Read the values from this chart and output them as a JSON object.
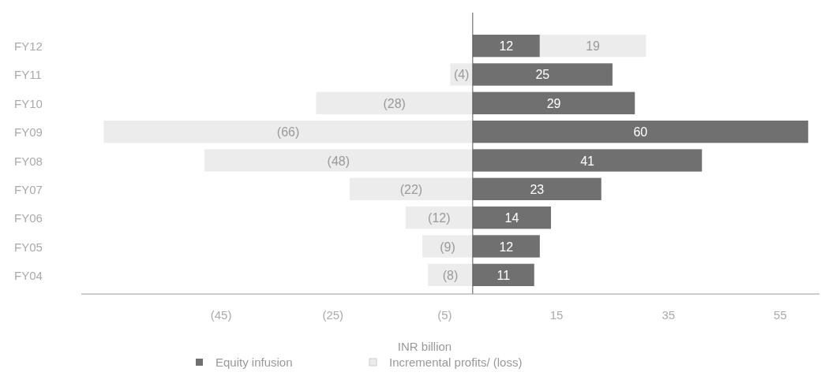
{
  "chart_data": {
    "type": "bar",
    "orientation": "horizontal",
    "stacked": true,
    "categories": [
      "FY12",
      "FY11",
      "FY10",
      "FY09",
      "FY08",
      "FY07",
      "FY06",
      "FY05",
      "FY04"
    ],
    "series": [
      {
        "name": "Equity infusion",
        "color": "#707070",
        "values": [
          12,
          25,
          29,
          60,
          41,
          23,
          14,
          12,
          11
        ],
        "value_labels": [
          "12",
          "25",
          "29",
          "60",
          "41",
          "23",
          "14",
          "12",
          "11"
        ]
      },
      {
        "name": "Incremental profits/ (loss)",
        "color": "#ececec",
        "values": [
          19,
          -4,
          -28,
          -66,
          -48,
          -22,
          -12,
          -9,
          -8
        ],
        "value_labels": [
          "19",
          "(4)",
          "(28)",
          "(66)",
          "(48)",
          "(22)",
          "(12)",
          "(9)",
          "(8)"
        ]
      }
    ],
    "xlim": [
      -70,
      62
    ],
    "xticks": [
      {
        "value": -45,
        "label": "(45)"
      },
      {
        "value": -25,
        "label": "(25)"
      },
      {
        "value": -5,
        "label": "(5)"
      },
      15,
      35,
      55
    ],
    "xlabel": "INR billion",
    "grid": false,
    "legend": "bottom"
  }
}
